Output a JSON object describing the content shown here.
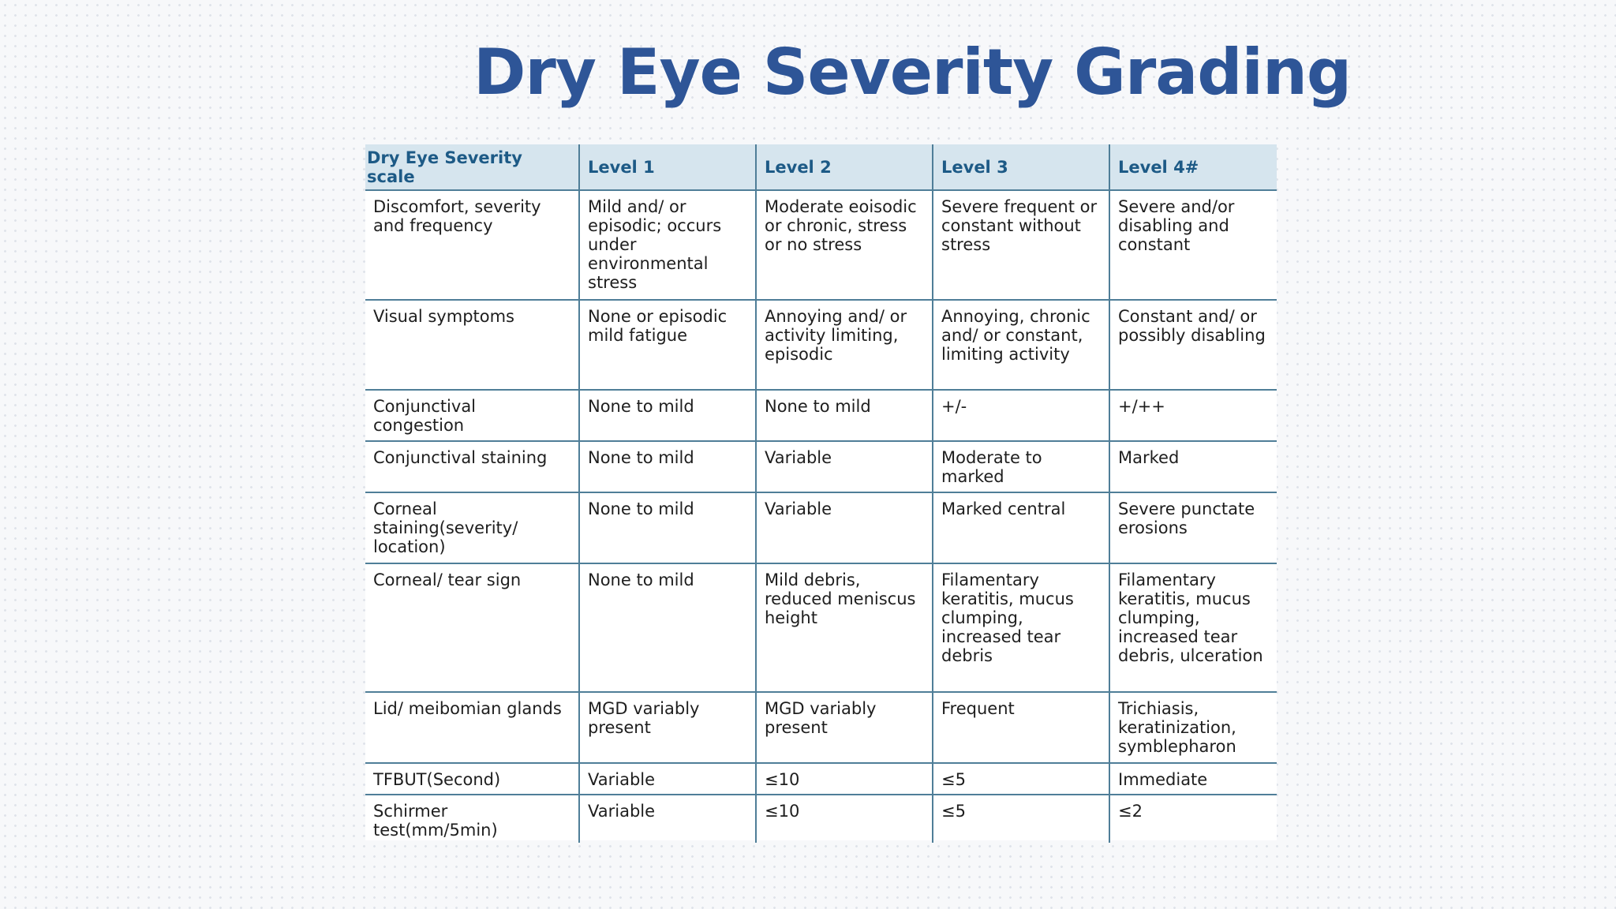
{
  "title": "Dry Eye Severity Grading",
  "table": {
    "headers": [
      "Dry Eye Severity scale",
      "Level 1",
      "Level 2",
      "Level 3",
      "Level 4#"
    ],
    "rows": [
      [
        "Discomfort, severity and frequency",
        "Mild and/ or episodic; occurs under environmental stress",
        "Moderate eoisodic or chronic, stress or no stress",
        "Severe frequent or constant without stress",
        "Severe and/or disabling and constant"
      ],
      [
        "Visual symptoms",
        "None or episodic mild fatigue",
        "Annoying and/ or activity limiting, episodic",
        "Annoying, chronic and/ or constant, limiting activity",
        "Constant and/ or possibly disabling"
      ],
      [
        "Conjunctival congestion",
        "None to mild",
        "None to mild",
        "+/-",
        "+/++"
      ],
      [
        "Conjunctival staining",
        "None to mild",
        "Variable",
        "Moderate to marked",
        "Marked"
      ],
      [
        "Corneal staining(severity/ location)",
        "None to mild",
        "Variable",
        "Marked central",
        "Severe punctate erosions"
      ],
      [
        "Corneal/ tear sign",
        "None to mild",
        "Mild debris, reduced meniscus height",
        "Filamentary keratitis, mucus clumping, increased tear debris",
        "Filamentary keratitis, mucus clumping, increased tear debris, ulceration"
      ],
      [
        "Lid/ meibomian glands",
        "MGD variably present",
        "MGD variably present",
        "Frequent",
        "Trichiasis, keratinization, symblepharon"
      ],
      [
        "TFBUT(Second)",
        "Variable",
        "≤10",
        "≤5",
        "Immediate"
      ],
      [
        "Schirmer test(mm/5min)",
        "Variable",
        "≤10",
        "≤5",
        "≤2"
      ]
    ]
  },
  "colors": {
    "title": "#2e5597",
    "header_bg": "#d6e5ee",
    "header_text": "#1d5a86",
    "grid_lines": "#4f7e98"
  }
}
